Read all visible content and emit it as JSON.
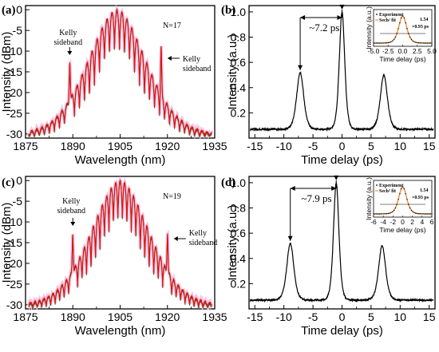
{
  "chart_data": [
    {
      "panel": "(a)",
      "type": "line",
      "xlabel": "Wavelength (nm)",
      "ylabel": "Intensity (dBm)",
      "xlim": [
        1875,
        1935
      ],
      "ylim": [
        -31,
        1
      ],
      "xticks": [
        "1875",
        "1890",
        "1905",
        "1920",
        "1935"
      ],
      "yticks": [
        "0",
        "-5",
        "-10",
        "-15",
        "-20",
        "-25",
        "-30"
      ],
      "annotations": [
        "N=17",
        "Kelly",
        "sideband",
        "Kelly",
        "sideband"
      ],
      "spectrum": {
        "center": 1904,
        "peak": 0,
        "floor": -30,
        "fringes": 17,
        "kelly_at": [
          1889,
          1918
        ]
      }
    },
    {
      "panel": "(b)",
      "type": "line",
      "xlabel": "Time delay (ps)",
      "ylabel": "Intensity (a.u.)",
      "xlim": [
        -16,
        16
      ],
      "ylim": [
        0,
        1.05
      ],
      "xticks": [
        "-15",
        "-10",
        "-5",
        "0",
        "5",
        "10",
        "15"
      ],
      "yticks": [
        "0.2",
        "0.4",
        "0.6",
        "0.8",
        "1.0"
      ],
      "peaks": [
        {
          "x": -7.2,
          "y": 0.52
        },
        {
          "x": 0,
          "y": 1.0
        },
        {
          "x": 7.2,
          "y": 0.5
        }
      ],
      "baseline": 0.07,
      "annotation": "~7.2 ps",
      "inset": {
        "xlabel": "Time delay (ps)",
        "ylabel": "Intensity (a.u.)",
        "xticks": [
          "-5.0",
          "-2.5",
          "0.0",
          "2.5",
          "5.0"
        ],
        "legend": [
          "Experiment",
          "Sech² fit"
        ],
        "note": [
          "1.54",
          "×0.93 ps"
        ]
      }
    },
    {
      "panel": "(c)",
      "type": "line",
      "xlabel": "Wavelength (nm)",
      "ylabel": "Intensity (dBm)",
      "xlim": [
        1875,
        1935
      ],
      "ylim": [
        -31,
        1
      ],
      "xticks": [
        "1875",
        "1890",
        "1905",
        "1920",
        "1935"
      ],
      "yticks": [
        "0",
        "-5",
        "-10",
        "-15",
        "-20",
        "-25",
        "-30"
      ],
      "annotations": [
        "N=19",
        "Kelly",
        "sideband",
        "Kelly",
        "sideband"
      ],
      "spectrum": {
        "center": 1905,
        "peak": 0,
        "floor": -30,
        "fringes": 19,
        "kelly_at": [
          1890,
          1920
        ]
      }
    },
    {
      "panel": "(d)",
      "type": "line",
      "xlabel": "Time delay (ps)",
      "ylabel": "Intensity (a.u.)",
      "xlim": [
        -16,
        16
      ],
      "ylim": [
        0,
        1.05
      ],
      "xticks": [
        "-15",
        "-10",
        "-5",
        "0",
        "5",
        "10",
        "15"
      ],
      "yticks": [
        "0.2",
        "0.4",
        "0.6",
        "0.8",
        "1.0"
      ],
      "peaks": [
        {
          "x": -8.9,
          "y": 0.52
        },
        {
          "x": -1.0,
          "y": 1.0
        },
        {
          "x": 6.9,
          "y": 0.5
        }
      ],
      "baseline": 0.07,
      "annotation": "~7.9 ps",
      "inset": {
        "xlabel": "Time delay (ps)",
        "ylabel": "Intensity (a.u.)",
        "xticks": [
          "-6",
          "-4",
          "-2",
          "0",
          "2",
          "4",
          "6"
        ],
        "legend": [
          "Experiment",
          "Sech² fit"
        ],
        "note": [
          "1.54",
          "×0.93 ps"
        ]
      }
    }
  ]
}
